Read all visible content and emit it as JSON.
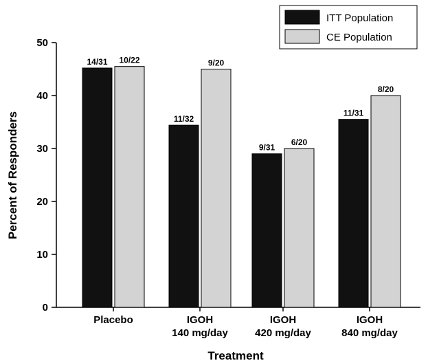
{
  "chart_data": {
    "type": "bar",
    "title": "",
    "xlabel": "Treatment",
    "ylabel": "Percent of Responders",
    "ylim": [
      0,
      50
    ],
    "yticks": [
      0,
      10,
      20,
      30,
      40,
      50
    ],
    "grid": false,
    "legend_position": "top-right",
    "categories": [
      [
        "Placebo"
      ],
      [
        "IGOH",
        "140 mg/day"
      ],
      [
        "IGOH",
        "420 mg/day"
      ],
      [
        "IGOH",
        "840 mg/day"
      ]
    ],
    "series": [
      {
        "name": "ITT Population",
        "color": "#111111",
        "values": [
          45.2,
          34.4,
          29.0,
          35.5
        ],
        "labels": [
          "14/31",
          "11/32",
          "9/31",
          "11/31"
        ]
      },
      {
        "name": "CE Population",
        "color": "#d3d3d3",
        "values": [
          45.5,
          45.0,
          30.0,
          40.0
        ],
        "labels": [
          "10/22",
          "9/20",
          "6/20",
          "8/20"
        ]
      }
    ]
  }
}
